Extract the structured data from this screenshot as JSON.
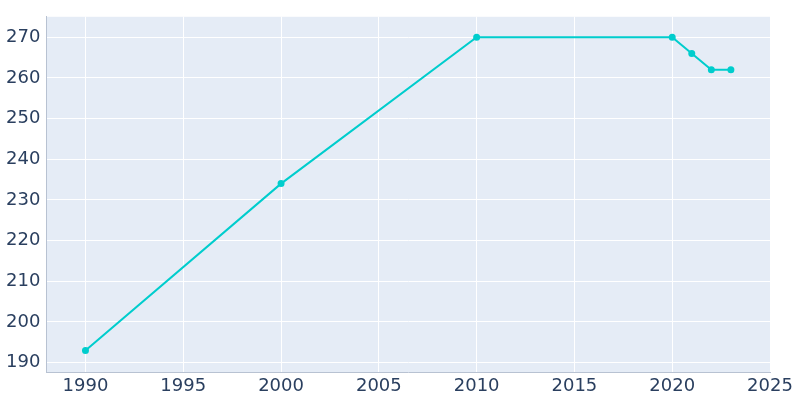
{
  "chart_data": {
    "type": "line",
    "x": [
      1990,
      2000,
      2010,
      2020,
      2021,
      2022,
      2023
    ],
    "values": [
      193,
      234,
      270,
      270,
      266,
      262,
      262
    ],
    "color": "#00cdcd",
    "marker": "circle",
    "xlim": [
      1988,
      2025
    ],
    "xticks": [
      1990,
      1995,
      2000,
      2005,
      2010,
      2015,
      2020,
      2025
    ],
    "ylim": [
      187.6,
      275
    ],
    "yticks": [
      190,
      200,
      210,
      220,
      230,
      240,
      250,
      260,
      270
    ],
    "grid": true
  }
}
